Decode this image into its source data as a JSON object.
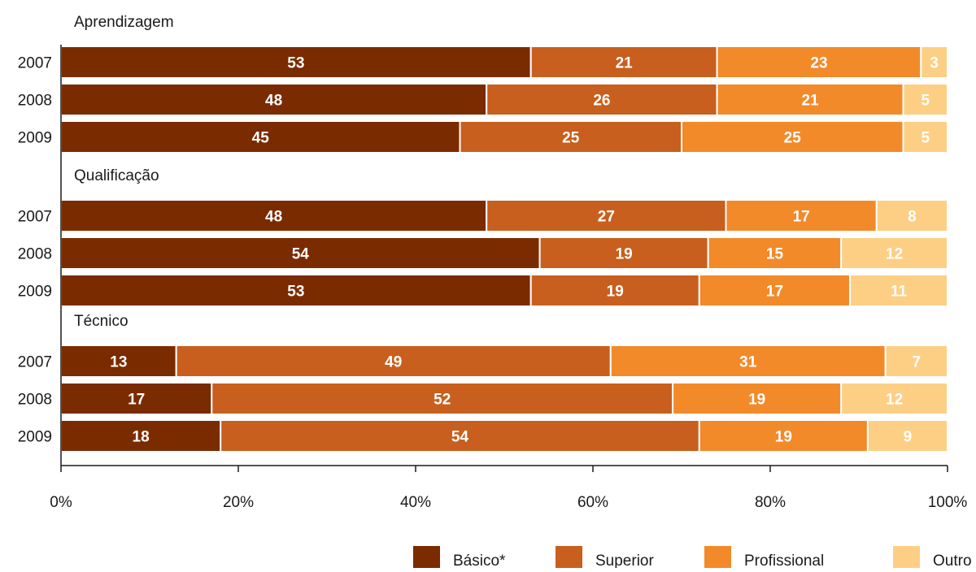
{
  "chart_data": {
    "type": "bar",
    "orientation": "horizontal",
    "stacked": true,
    "xlim": [
      0,
      100
    ],
    "x_ticks": [
      "0%",
      "20%",
      "40%",
      "60%",
      "80%",
      "100%"
    ],
    "grid": false,
    "legend_position": "bottom-right",
    "series": [
      {
        "name": "Básico*",
        "color": "#7b2b00"
      },
      {
        "name": "Superior",
        "color": "#c85f1e"
      },
      {
        "name": "Profissional",
        "color": "#f28a2a"
      },
      {
        "name": "Outro",
        "color": "#fdcf85"
      }
    ],
    "groups": [
      {
        "title": "Aprendizagem",
        "rows": [
          {
            "year": "2007",
            "values": [
              53,
              21,
              23,
              3
            ]
          },
          {
            "year": "2008",
            "values": [
              48,
              26,
              21,
              5
            ]
          },
          {
            "year": "2009",
            "values": [
              45,
              25,
              25,
              5
            ]
          }
        ]
      },
      {
        "title": "Qualificação",
        "rows": [
          {
            "year": "2007",
            "values": [
              48,
              27,
              17,
              8
            ]
          },
          {
            "year": "2008",
            "values": [
              54,
              19,
              15,
              12
            ]
          },
          {
            "year": "2009",
            "values": [
              53,
              19,
              17,
              11
            ]
          }
        ]
      },
      {
        "title": "Técnico",
        "rows": [
          {
            "year": "2007",
            "values": [
              13,
              49,
              31,
              7
            ]
          },
          {
            "year": "2008",
            "values": [
              17,
              52,
              19,
              12
            ]
          },
          {
            "year": "2009",
            "values": [
              18,
              54,
              19,
              9
            ]
          }
        ]
      }
    ]
  }
}
